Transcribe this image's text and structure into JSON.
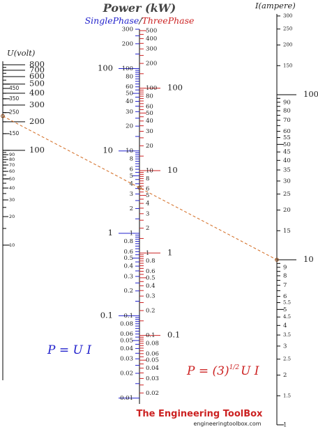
{
  "title": "Power (kW)",
  "subtitle": {
    "single": "SinglePhase",
    "separator": "/",
    "three": "ThreePhase"
  },
  "voltage_axis": {
    "label": "U(volt)",
    "major": [
      "800",
      "700",
      "600",
      "500",
      "400",
      "300",
      "200",
      "100"
    ],
    "mid": [
      "450",
      "350",
      "250",
      "150"
    ],
    "minor": [
      "90",
      "80",
      "70",
      "60",
      "50",
      "40",
      "30",
      "20",
      "10"
    ]
  },
  "current_axis": {
    "label": "I(ampere)",
    "big": [
      "100",
      "10"
    ],
    "labels": [
      "300",
      "250",
      "200",
      "150",
      "100",
      "90",
      "80",
      "70",
      "60",
      "55",
      "50",
      "45",
      "40",
      "35",
      "30",
      "25",
      "20",
      "15",
      "10",
      "9",
      "8",
      "7",
      "6",
      "5.5",
      "5",
      "4.5",
      "4",
      "3.5",
      "3",
      "2.5",
      "2",
      "1.5",
      "1"
    ]
  },
  "power_axis": {
    "single_big": [
      "100",
      "10",
      "1",
      "0.1"
    ],
    "three_big": [
      "100",
      "10",
      "1",
      "0.1"
    ],
    "single_labels": [
      "300",
      "200",
      "100",
      "80",
      "60",
      "50",
      "40",
      "30",
      "20",
      "10",
      "8",
      "6",
      "5",
      "4",
      "3",
      "2",
      "1",
      "0.8",
      "0.6",
      "0.5",
      "0.4",
      "0.3",
      "0.2",
      "0.1",
      "0.08",
      "0.06",
      "0.05",
      "0.04",
      "0.03",
      "0.02",
      "0.01"
    ],
    "three_labels": [
      "500",
      "400",
      "300",
      "200",
      "100",
      "80",
      "60",
      "50",
      "40",
      "30",
      "20",
      "10",
      "8",
      "6",
      "5",
      "4",
      "3",
      "2",
      "1",
      "0.8",
      "0.6",
      "0.5",
      "0.4",
      "0.3",
      "0.2",
      "0.1",
      "0.08",
      "0.06",
      "0.05",
      "0.04",
      "0.03",
      "0.02"
    ]
  },
  "formulas": {
    "single": "P = U I",
    "three_prefix": "P = (3)",
    "three_exp": "1/2",
    "three_suffix": "U I"
  },
  "example": {
    "voltage": 230,
    "current": 10,
    "power_three_phase_kw": 4
  },
  "branding": {
    "name": "The Engineering ToolBox",
    "url": "engineeringtoolbox.com"
  },
  "colors": {
    "single_phase": "#2222cc",
    "three_phase": "#cc2222",
    "axis": "#000000",
    "dashed_line": "#d2691e",
    "brand": "#cc2222"
  }
}
